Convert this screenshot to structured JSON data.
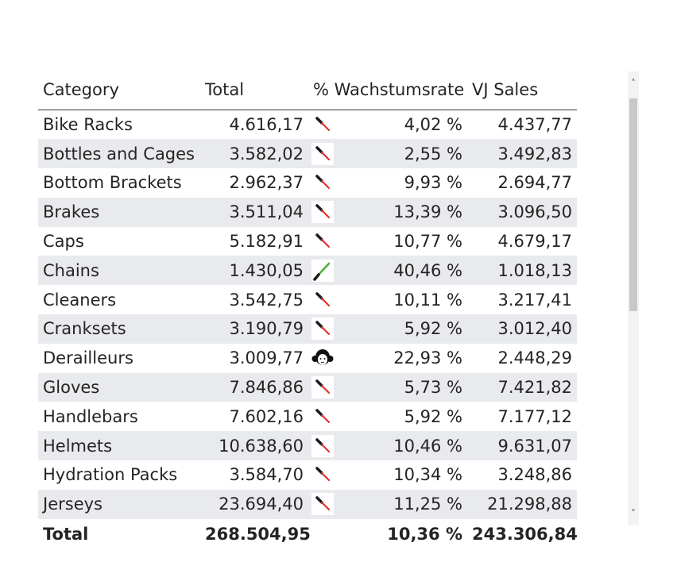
{
  "table": {
    "headers": [
      "Category",
      "Total",
      "% Wachstumsrate",
      "VJ Sales"
    ],
    "rows": [
      {
        "category": "Bike Racks",
        "total": "4.616,17",
        "icon": "red-lightsaber-icon",
        "growth": "4,02 %",
        "vj": "4.437,77"
      },
      {
        "category": "Bottles and Cages",
        "total": "3.582,02",
        "icon": "red-lightsaber-icon",
        "growth": "2,55 %",
        "vj": "3.492,83"
      },
      {
        "category": "Bottom Brackets",
        "total": "2.962,37",
        "icon": "red-lightsaber-icon",
        "growth": "9,93 %",
        "vj": "2.694,77"
      },
      {
        "category": "Brakes",
        "total": "3.511,04",
        "icon": "red-lightsaber-icon",
        "growth": "13,39 %",
        "vj": "3.096,50"
      },
      {
        "category": "Caps",
        "total": "5.182,91",
        "icon": "red-lightsaber-icon",
        "growth": "10,77 %",
        "vj": "4.679,17"
      },
      {
        "category": "Chains",
        "total": "1.430,05",
        "icon": "green-lightsaber-icon",
        "growth": "40,46 %",
        "vj": "1.018,13"
      },
      {
        "category": "Cleaners",
        "total": "3.542,75",
        "icon": "red-lightsaber-icon",
        "growth": "10,11 %",
        "vj": "3.217,41"
      },
      {
        "category": "Cranksets",
        "total": "3.190,79",
        "icon": "red-lightsaber-icon",
        "growth": "5,92 %",
        "vj": "3.012,40"
      },
      {
        "category": "Derailleurs",
        "total": "3.009,77",
        "icon": "princess-leia-icon",
        "growth": "22,93 %",
        "vj": "2.448,29"
      },
      {
        "category": "Gloves",
        "total": "7.846,86",
        "icon": "red-lightsaber-icon",
        "growth": "5,73 %",
        "vj": "7.421,82"
      },
      {
        "category": "Handlebars",
        "total": "7.602,16",
        "icon": "red-lightsaber-icon",
        "growth": "5,92 %",
        "vj": "7.177,12"
      },
      {
        "category": "Helmets",
        "total": "10.638,60",
        "icon": "red-lightsaber-icon",
        "growth": "10,46 %",
        "vj": "9.631,07"
      },
      {
        "category": "Hydration Packs",
        "total": "3.584,70",
        "icon": "red-lightsaber-icon",
        "growth": "10,34 %",
        "vj": "3.248,86"
      },
      {
        "category": "Jerseys",
        "total": "23.694,40",
        "icon": "red-lightsaber-icon",
        "growth": "11,25 %",
        "vj": "21.298,88"
      }
    ],
    "totals": {
      "label": "Total",
      "total": "268.504,95",
      "growth": "10,36 %",
      "vj": "243.306,84"
    }
  },
  "scrollbar": {
    "up_icon": "chevron-up-icon",
    "up_glyph": "˄",
    "down_icon": "chevron-down-icon",
    "down_glyph": "˅"
  },
  "colors": {
    "alt_row": "#e9eaed",
    "saber_red": "#e0322c",
    "saber_green": "#4caf3a",
    "hilt": "#1a1a1a"
  }
}
